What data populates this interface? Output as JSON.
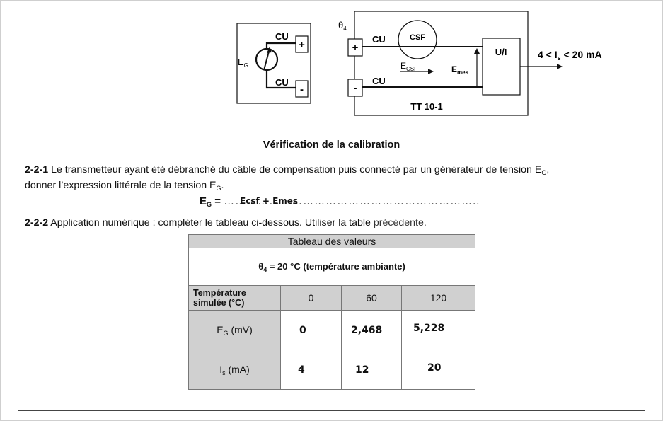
{
  "diagram": {
    "generator": {
      "eg_label": "E",
      "eg_sub": "G",
      "cu_top": "CU",
      "cu_bottom": "CU",
      "plus": "+",
      "minus": "-"
    },
    "transmitter": {
      "theta": "θ",
      "theta_sub": "4",
      "plus": "+",
      "minus": "-",
      "cu_top": "CU",
      "cu_bottom": "CU",
      "csf": "CSF",
      "ecsf": "E",
      "ecsf_sub": "CSF",
      "emes": "E",
      "emes_sub": "mes",
      "ui": "U/I",
      "name": "TT 10-1",
      "output_pre": "4 < I",
      "output_sub": "s",
      "output_post": " < 20 mA"
    }
  },
  "section": {
    "title": "Vérification de la calibration",
    "q1_num": "2-2-1",
    "q1_text_a": " Le transmetteur ayant été débranché du câble de compensation puis connecté par un générateur de tension E",
    "q1_text_sub": "G",
    "q1_text_b": ",",
    "q1_text_c": "donner l’expression littérale de la tension E",
    "q1_text_c_sub": "G",
    "q1_text_d": ".",
    "formula_label": "E",
    "formula_sub": "G",
    "formula_eq": " = ",
    "formula_dots": "…………………………………………………………..",
    "answer": "Ecsf + Emes",
    "q2_num": "2-2-2",
    "q2_text": " Application numérique : compléter le tableau ci-dessous. Utiliser la table ",
    "q2_ref": " précédente."
  },
  "table": {
    "title": "Tableau des valeurs",
    "condition_pre": "θ",
    "condition_sub": "4",
    "condition_post": " = 20 °C (température ambiante)",
    "temp_label_1": "Température",
    "temp_label_2": "simulée (°C)",
    "temps": [
      "0",
      "60",
      "120"
    ],
    "eg_label": "E",
    "eg_sub": "G",
    "eg_unit": " (mV)",
    "eg_values": [
      "0",
      "2,468",
      "5,228"
    ],
    "is_label": "I",
    "is_sub": "s",
    "is_unit": " (mA)",
    "is_values": [
      "4",
      "12",
      "20"
    ]
  }
}
